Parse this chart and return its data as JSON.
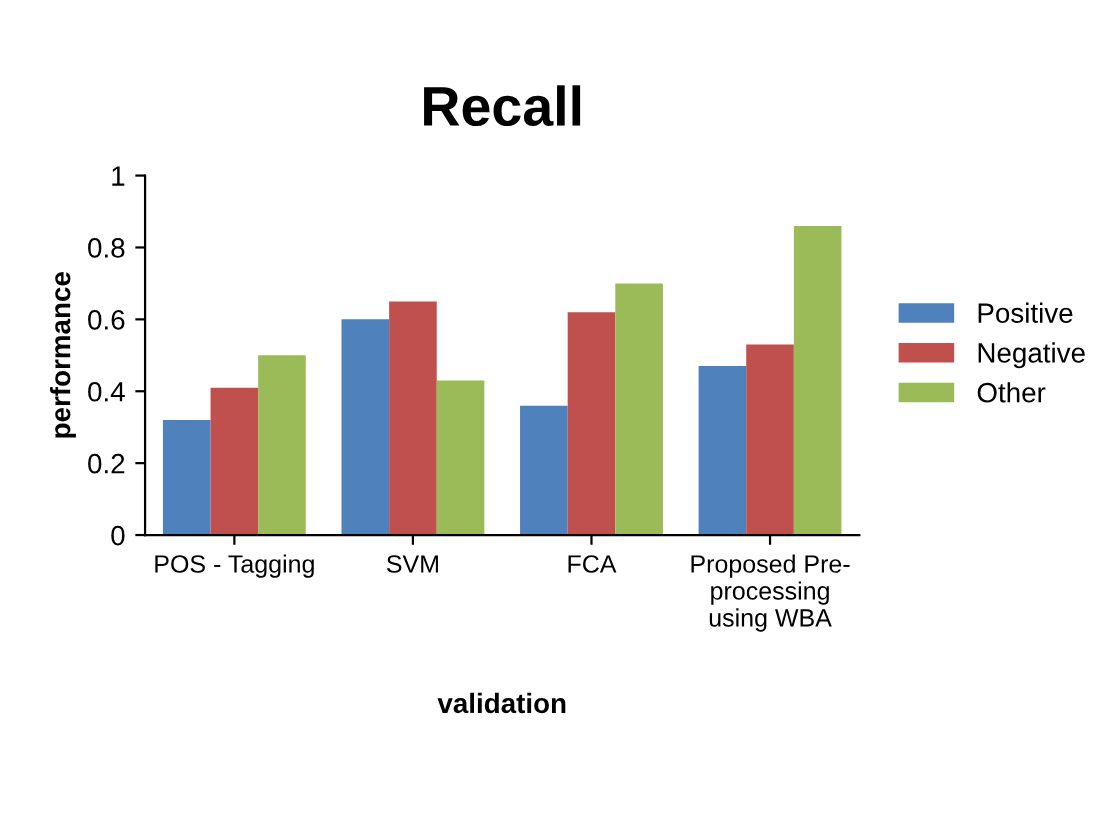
{
  "chart_data": {
    "type": "bar",
    "title": "Recall",
    "xlabel": "validation",
    "ylabel": "performance",
    "categories": [
      "POS - Tagging",
      "SVM",
      "FCA",
      "Proposed Pre-\nprocessing\nusing WBA"
    ],
    "series": [
      {
        "name": "Positive",
        "color": "#4f81bd",
        "values": [
          0.32,
          0.6,
          0.36,
          0.47
        ]
      },
      {
        "name": "Negative",
        "color": "#c0504d",
        "values": [
          0.41,
          0.65,
          0.62,
          0.53
        ]
      },
      {
        "name": "Other",
        "color": "#9bbb59",
        "values": [
          0.5,
          0.43,
          0.7,
          0.86
        ]
      }
    ],
    "ylim": [
      0,
      1
    ],
    "yticks": [
      0,
      0.2,
      0.4,
      0.6,
      0.8,
      1
    ],
    "grid": false,
    "legend": "right"
  }
}
